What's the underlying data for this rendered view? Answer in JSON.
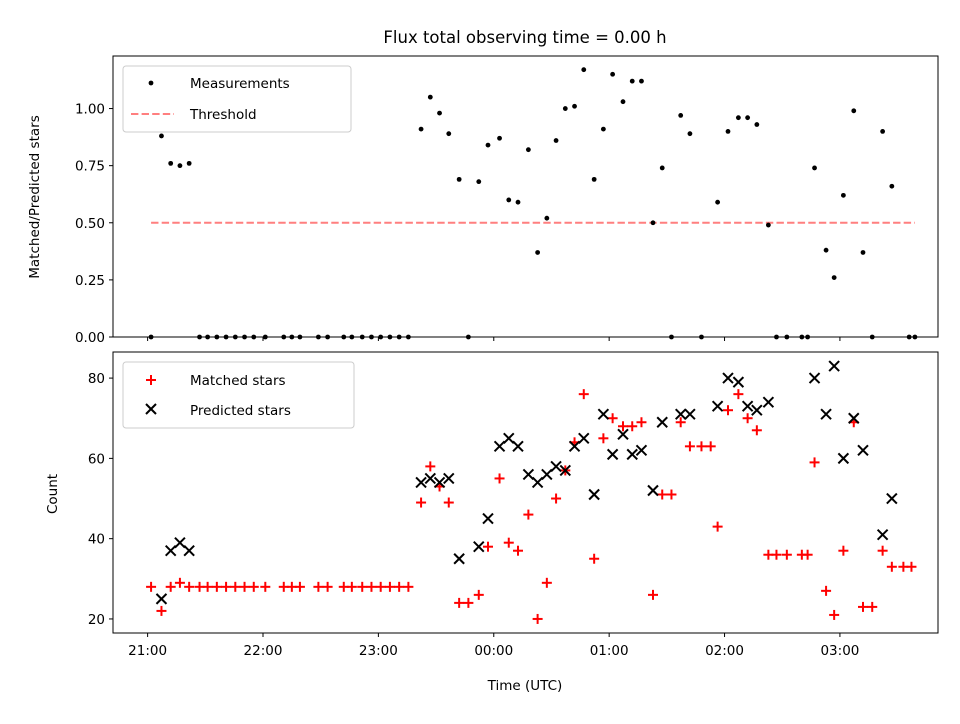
{
  "chart_data": [
    {
      "type": "scatter",
      "title": "Flux total observing time = 0.00 h",
      "xlabel": "",
      "ylabel": "Matched/Predicted stars",
      "xlim_hours": [
        20.7,
        27.85
      ],
      "ylim": [
        0,
        1.23
      ],
      "yticks": [
        0,
        0.25,
        0.5,
        0.75,
        1.0
      ],
      "ytick_labels": [
        "0.00",
        "0.25",
        "0.50",
        "0.75",
        "1.00"
      ],
      "legend_position": "upper-left",
      "series": [
        {
          "name": "Measurements",
          "kind": "scatter",
          "color": "#000000",
          "points": [
            [
              21.03,
              0.0
            ],
            [
              21.12,
              0.88
            ],
            [
              21.2,
              0.76
            ],
            [
              21.28,
              0.75
            ],
            [
              21.36,
              0.76
            ],
            [
              21.45,
              0.0
            ],
            [
              21.52,
              0.0
            ],
            [
              21.6,
              0.0
            ],
            [
              21.68,
              0.0
            ],
            [
              21.76,
              0.0
            ],
            [
              21.84,
              0.0
            ],
            [
              21.92,
              0.0
            ],
            [
              22.02,
              0.0
            ],
            [
              22.18,
              0.0
            ],
            [
              22.25,
              0.0
            ],
            [
              22.32,
              0.0
            ],
            [
              22.48,
              0.0
            ],
            [
              22.56,
              0.0
            ],
            [
              22.7,
              0.0
            ],
            [
              22.77,
              0.0
            ],
            [
              22.86,
              0.0
            ],
            [
              22.94,
              0.0
            ],
            [
              23.02,
              0.0
            ],
            [
              23.1,
              0.0
            ],
            [
              23.18,
              0.0
            ],
            [
              23.26,
              0.0
            ],
            [
              23.37,
              0.91
            ],
            [
              23.45,
              1.05
            ],
            [
              23.53,
              0.98
            ],
            [
              23.61,
              0.89
            ],
            [
              23.7,
              0.69
            ],
            [
              23.78,
              0.0
            ],
            [
              23.87,
              0.68
            ],
            [
              23.95,
              0.84
            ],
            [
              24.05,
              0.87
            ],
            [
              24.13,
              0.6
            ],
            [
              24.21,
              0.59
            ],
            [
              24.3,
              0.82
            ],
            [
              24.38,
              0.37
            ],
            [
              24.46,
              0.52
            ],
            [
              24.54,
              0.86
            ],
            [
              24.62,
              1.0
            ],
            [
              24.7,
              1.01
            ],
            [
              24.78,
              1.17
            ],
            [
              24.87,
              0.69
            ],
            [
              24.95,
              0.91
            ],
            [
              25.03,
              1.15
            ],
            [
              25.12,
              1.03
            ],
            [
              25.2,
              1.12
            ],
            [
              25.28,
              1.12
            ],
            [
              25.38,
              0.5
            ],
            [
              25.46,
              0.74
            ],
            [
              25.54,
              0.0
            ],
            [
              25.62,
              0.97
            ],
            [
              25.7,
              0.89
            ],
            [
              25.8,
              0.0
            ],
            [
              25.94,
              0.59
            ],
            [
              26.03,
              0.9
            ],
            [
              26.12,
              0.96
            ],
            [
              26.2,
              0.96
            ],
            [
              26.28,
              0.93
            ],
            [
              26.38,
              0.49
            ],
            [
              26.45,
              0.0
            ],
            [
              26.54,
              0.0
            ],
            [
              26.67,
              0.0
            ],
            [
              26.72,
              0.0
            ],
            [
              26.78,
              0.74
            ],
            [
              26.88,
              0.38
            ],
            [
              26.95,
              0.26
            ],
            [
              27.03,
              0.62
            ],
            [
              27.12,
              0.99
            ],
            [
              27.2,
              0.37
            ],
            [
              27.28,
              0.0
            ],
            [
              27.37,
              0.9
            ],
            [
              27.45,
              0.66
            ],
            [
              27.6,
              0.0
            ],
            [
              27.65,
              0.0
            ]
          ]
        },
        {
          "name": "Threshold",
          "kind": "dashed-line",
          "color": "#ff7f7f",
          "x": [
            21.03,
            27.65
          ],
          "y": [
            0.5,
            0.5
          ]
        }
      ]
    },
    {
      "type": "scatter",
      "title": "",
      "xlabel": "Time (UTC)",
      "ylabel": "Count",
      "xlim_hours": [
        20.7,
        27.85
      ],
      "ylim": [
        16.5,
        86.5
      ],
      "yticks": [
        20,
        40,
        60,
        80
      ],
      "ytick_labels": [
        "20",
        "40",
        "60",
        "80"
      ],
      "xticks_hours": [
        21,
        22,
        23,
        24,
        25,
        26,
        27
      ],
      "xtick_labels": [
        "21:00",
        "22:00",
        "23:00",
        "00:00",
        "01:00",
        "02:00",
        "03:00"
      ],
      "legend_position": "upper-left",
      "series": [
        {
          "name": "Matched stars",
          "marker": "plus",
          "color": "#ff0000",
          "points": [
            [
              21.03,
              28
            ],
            [
              21.12,
              22
            ],
            [
              21.2,
              28
            ],
            [
              21.28,
              29
            ],
            [
              21.36,
              28
            ],
            [
              21.45,
              28
            ],
            [
              21.52,
              28
            ],
            [
              21.6,
              28
            ],
            [
              21.68,
              28
            ],
            [
              21.76,
              28
            ],
            [
              21.84,
              28
            ],
            [
              21.92,
              28
            ],
            [
              22.02,
              28
            ],
            [
              22.18,
              28
            ],
            [
              22.25,
              28
            ],
            [
              22.32,
              28
            ],
            [
              22.48,
              28
            ],
            [
              22.56,
              28
            ],
            [
              22.7,
              28
            ],
            [
              22.77,
              28
            ],
            [
              22.86,
              28
            ],
            [
              22.94,
              28
            ],
            [
              23.02,
              28
            ],
            [
              23.1,
              28
            ],
            [
              23.18,
              28
            ],
            [
              23.26,
              28
            ],
            [
              23.37,
              49
            ],
            [
              23.45,
              58
            ],
            [
              23.53,
              53
            ],
            [
              23.61,
              49
            ],
            [
              23.7,
              24
            ],
            [
              23.78,
              24
            ],
            [
              23.87,
              26
            ],
            [
              23.95,
              38
            ],
            [
              24.05,
              55
            ],
            [
              24.13,
              39
            ],
            [
              24.21,
              37
            ],
            [
              24.3,
              46
            ],
            [
              24.38,
              20
            ],
            [
              24.46,
              29
            ],
            [
              24.54,
              50
            ],
            [
              24.62,
              57
            ],
            [
              24.7,
              64
            ],
            [
              24.78,
              76
            ],
            [
              24.87,
              35
            ],
            [
              24.95,
              65
            ],
            [
              25.03,
              70
            ],
            [
              25.12,
              68
            ],
            [
              25.2,
              68
            ],
            [
              25.28,
              69
            ],
            [
              25.38,
              26
            ],
            [
              25.46,
              51
            ],
            [
              25.54,
              51
            ],
            [
              25.62,
              69
            ],
            [
              25.7,
              63
            ],
            [
              25.8,
              63
            ],
            [
              25.88,
              63
            ],
            [
              25.94,
              43
            ],
            [
              26.03,
              72
            ],
            [
              26.12,
              76
            ],
            [
              26.2,
              70
            ],
            [
              26.28,
              67
            ],
            [
              26.38,
              36
            ],
            [
              26.45,
              36
            ],
            [
              26.54,
              36
            ],
            [
              26.67,
              36
            ],
            [
              26.72,
              36
            ],
            [
              26.78,
              59
            ],
            [
              26.88,
              27
            ],
            [
              26.95,
              21
            ],
            [
              27.03,
              37
            ],
            [
              27.12,
              69
            ],
            [
              27.2,
              23
            ],
            [
              27.28,
              23
            ],
            [
              27.37,
              37
            ],
            [
              27.45,
              33
            ],
            [
              27.55,
              33
            ],
            [
              27.62,
              33
            ]
          ]
        },
        {
          "name": "Predicted stars",
          "marker": "x",
          "color": "#000000",
          "points": [
            [
              21.12,
              25
            ],
            [
              21.2,
              37
            ],
            [
              21.28,
              39
            ],
            [
              21.36,
              37
            ],
            [
              23.37,
              54
            ],
            [
              23.45,
              55
            ],
            [
              23.53,
              54
            ],
            [
              23.61,
              55
            ],
            [
              23.7,
              35
            ],
            [
              23.87,
              38
            ],
            [
              23.95,
              45
            ],
            [
              24.05,
              63
            ],
            [
              24.13,
              65
            ],
            [
              24.21,
              63
            ],
            [
              24.3,
              56
            ],
            [
              24.38,
              54
            ],
            [
              24.46,
              56
            ],
            [
              24.54,
              58
            ],
            [
              24.62,
              57
            ],
            [
              24.7,
              63
            ],
            [
              24.78,
              65
            ],
            [
              24.87,
              51
            ],
            [
              24.95,
              71
            ],
            [
              25.03,
              61
            ],
            [
              25.12,
              66
            ],
            [
              25.2,
              61
            ],
            [
              25.28,
              62
            ],
            [
              25.38,
              52
            ],
            [
              25.46,
              69
            ],
            [
              25.62,
              71
            ],
            [
              25.7,
              71
            ],
            [
              25.94,
              73
            ],
            [
              26.03,
              80
            ],
            [
              26.12,
              79
            ],
            [
              26.2,
              73
            ],
            [
              26.28,
              72
            ],
            [
              26.38,
              74
            ],
            [
              26.78,
              80
            ],
            [
              26.88,
              71
            ],
            [
              26.95,
              83
            ],
            [
              27.03,
              60
            ],
            [
              27.12,
              70
            ],
            [
              27.2,
              62
            ],
            [
              27.37,
              41
            ],
            [
              27.45,
              50
            ]
          ]
        }
      ]
    }
  ]
}
